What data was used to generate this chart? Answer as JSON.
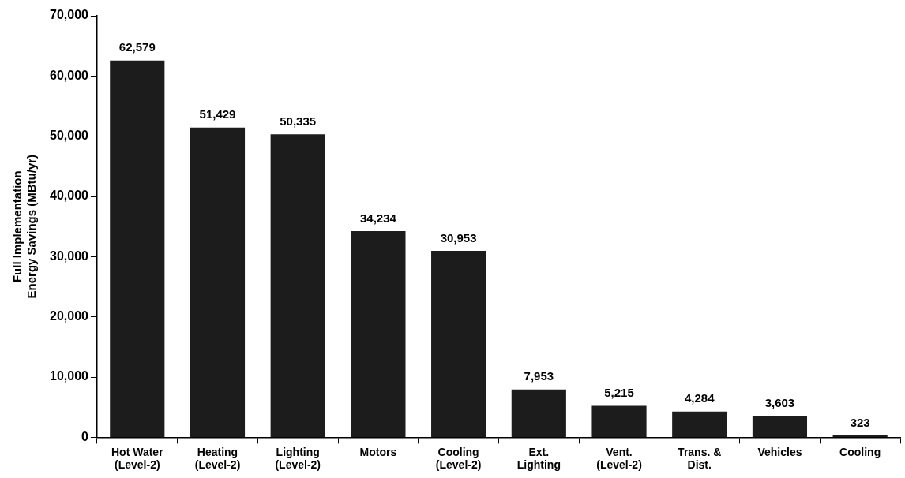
{
  "chart_data": {
    "type": "bar",
    "ylabel": "Full Implementation\nEnergy Savings (MBtu/yr)",
    "categories": [
      "Hot Water\n(Level-2)",
      "Heating\n(Level-2)",
      "Lighting\n(Level-2)",
      "Motors",
      "Cooling\n(Level-2)",
      "Ext.\nLighting",
      "Vent.\n(Level-2)",
      "Trans. &\nDist.",
      "Vehicles",
      "Cooling"
    ],
    "values": [
      62579,
      51429,
      50335,
      34234,
      30953,
      7953,
      5215,
      4284,
      3603,
      323
    ],
    "color": "#1c1c1c",
    "ylim": [
      0,
      70000
    ],
    "yticks": [
      {
        "value": 0,
        "label": "0"
      },
      {
        "value": 10000,
        "label": "10,000"
      },
      {
        "value": 20000,
        "label": "20,000"
      },
      {
        "value": 30000,
        "label": "30,000"
      },
      {
        "value": 40000,
        "label": "40,000"
      },
      {
        "value": 50000,
        "label": "50,000"
      },
      {
        "value": 60000,
        "label": "60,000"
      },
      {
        "value": 70000,
        "label": "70,000"
      }
    ],
    "value_labels": [
      "62,579",
      "51,429",
      "50,335",
      "34,234",
      "30,953",
      "7,953",
      "5,215",
      "4,284",
      "3,603",
      "323"
    ],
    "grid": false,
    "legend": false
  }
}
